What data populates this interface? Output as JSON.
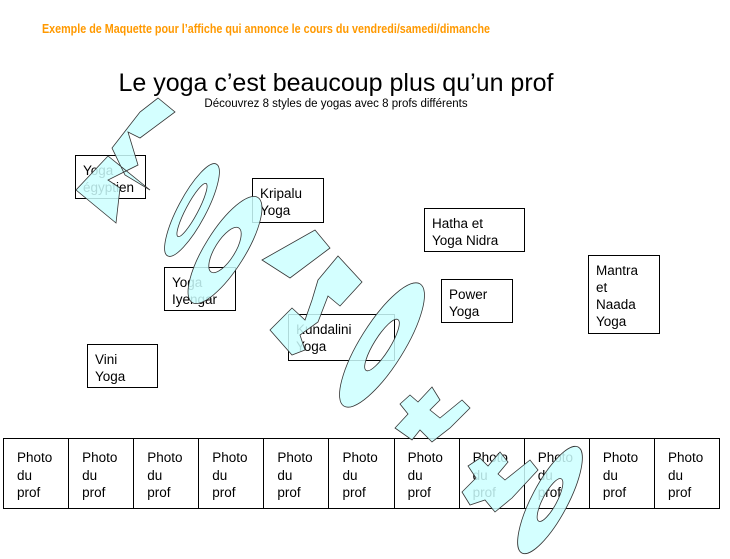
{
  "header_note": "Exemple de Maquette pour l’affiche qui annonce le cours du vendredi/samedi/dimanche",
  "title": "Le yoga c’est beaucoup plus qu’un prof",
  "subtitle": "Découvrez 8 styles de yogas avec 8 profs différents",
  "styles": [
    {
      "lines": [
        "Yoga",
        "égyptien"
      ]
    },
    {
      "lines": [
        "Kripalu",
        "Yoga"
      ]
    },
    {
      "lines": [
        "Hatha et",
        "Yoga Nidra"
      ]
    },
    {
      "lines": [
        "Mantra",
        "et",
        "Naada",
        "Yoga"
      ]
    },
    {
      "lines": [
        "Yoga",
        "Iyengar"
      ]
    },
    {
      "lines": [
        "Power",
        "Yoga"
      ]
    },
    {
      "lines": [
        "Kundalini",
        "Yoga"
      ]
    },
    {
      "lines": [
        "Vini",
        "Yoga"
      ]
    }
  ],
  "photo_cells": [
    {
      "lines": [
        "Photo",
        "du",
        "prof"
      ]
    },
    {
      "lines": [
        "Photo",
        "du",
        "prof"
      ]
    },
    {
      "lines": [
        "Photo",
        "du",
        "prof"
      ]
    },
    {
      "lines": [
        "Photo",
        "du",
        "prof"
      ]
    },
    {
      "lines": [
        "Photo",
        "du",
        "prof"
      ]
    },
    {
      "lines": [
        "Photo",
        "du",
        "prof"
      ]
    },
    {
      "lines": [
        "Photo",
        "du",
        "prof"
      ]
    },
    {
      "lines": [
        "Photo",
        "du",
        "prof"
      ]
    },
    {
      "lines": [
        "Photo",
        "du",
        "prof"
      ]
    },
    {
      "lines": [
        "Photo",
        "du",
        "prof"
      ]
    },
    {
      "lines": [
        "Photo",
        "du",
        "prof"
      ]
    }
  ],
  "watermark": {
    "text": "Maquette",
    "fill": "#ccffff",
    "stroke": "#333333"
  },
  "colors": {
    "header": "#ff9900"
  }
}
